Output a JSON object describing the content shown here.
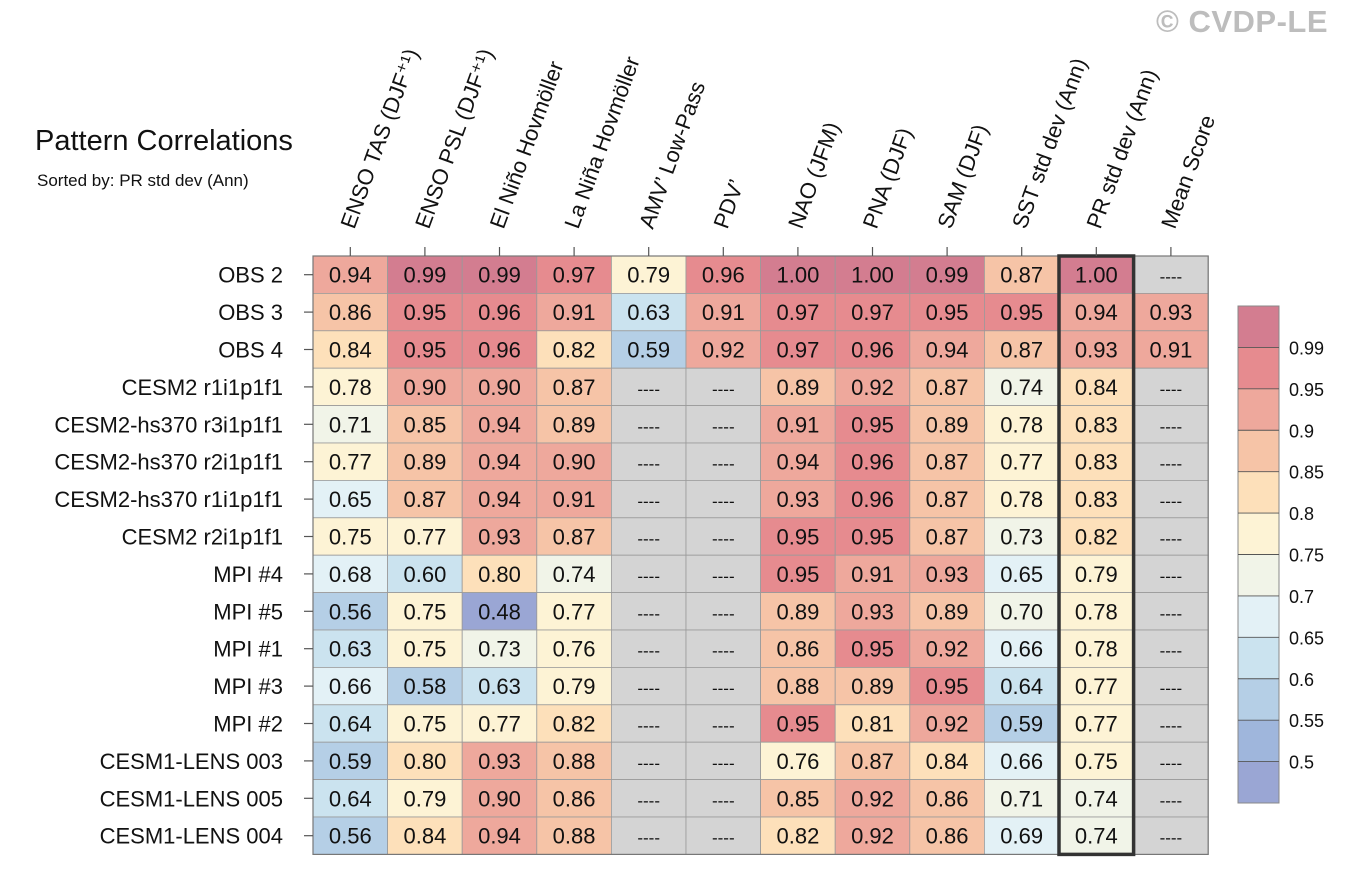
{
  "watermark": "© CVDP-LE",
  "chart_data": {
    "type": "heatmap",
    "title": "Pattern Correlations",
    "subtitle": "Sorted by: PR std dev (Ann)",
    "columns": [
      "ENSO TAS (DJF⁺¹)",
      "ENSO PSL (DJF⁺¹)",
      "El Niño Hovmöller",
      "La Niña Hovmöller",
      "AMV’ Low-Pass",
      "PDV’",
      "NAO (JFM)",
      "PNA (DJF)",
      "SAM (DJF)",
      "SST std dev (Ann)",
      "PR std dev (Ann)",
      "Mean Score"
    ],
    "rows": [
      "OBS 2",
      "OBS 3",
      "OBS 4",
      "CESM2 r1i1p1f1",
      "CESM2-hs370 r3i1p1f1",
      "CESM2-hs370 r2i1p1f1",
      "CESM2-hs370 r1i1p1f1",
      "CESM2 r2i1p1f1",
      "MPI #4",
      "MPI #5",
      "MPI #1",
      "MPI #3",
      "MPI #2",
      "CESM1-LENS 003",
      "CESM1-LENS 005",
      "CESM1-LENS 004"
    ],
    "values": [
      [
        0.94,
        0.99,
        0.99,
        0.97,
        0.79,
        0.96,
        1.0,
        1.0,
        0.99,
        0.87,
        1.0,
        null
      ],
      [
        0.86,
        0.95,
        0.96,
        0.91,
        0.63,
        0.91,
        0.97,
        0.97,
        0.95,
        0.95,
        0.94,
        0.93
      ],
      [
        0.84,
        0.95,
        0.96,
        0.82,
        0.59,
        0.92,
        0.97,
        0.96,
        0.94,
        0.87,
        0.93,
        0.91
      ],
      [
        0.78,
        0.9,
        0.9,
        0.87,
        null,
        null,
        0.89,
        0.92,
        0.87,
        0.74,
        0.84,
        null
      ],
      [
        0.71,
        0.85,
        0.94,
        0.89,
        null,
        null,
        0.91,
        0.95,
        0.89,
        0.78,
        0.83,
        null
      ],
      [
        0.77,
        0.89,
        0.94,
        0.9,
        null,
        null,
        0.94,
        0.96,
        0.87,
        0.77,
        0.83,
        null
      ],
      [
        0.65,
        0.87,
        0.94,
        0.91,
        null,
        null,
        0.93,
        0.96,
        0.87,
        0.78,
        0.83,
        null
      ],
      [
        0.75,
        0.77,
        0.93,
        0.87,
        null,
        null,
        0.95,
        0.95,
        0.87,
        0.73,
        0.82,
        null
      ],
      [
        0.68,
        0.6,
        0.8,
        0.74,
        null,
        null,
        0.95,
        0.91,
        0.93,
        0.65,
        0.79,
        null
      ],
      [
        0.56,
        0.75,
        0.48,
        0.77,
        null,
        null,
        0.89,
        0.93,
        0.89,
        0.7,
        0.78,
        null
      ],
      [
        0.63,
        0.75,
        0.73,
        0.76,
        null,
        null,
        0.86,
        0.95,
        0.92,
        0.66,
        0.78,
        null
      ],
      [
        0.66,
        0.58,
        0.63,
        0.79,
        null,
        null,
        0.88,
        0.89,
        0.95,
        0.64,
        0.77,
        null
      ],
      [
        0.64,
        0.75,
        0.77,
        0.82,
        null,
        null,
        0.95,
        0.81,
        0.92,
        0.59,
        0.77,
        null
      ],
      [
        0.59,
        0.8,
        0.93,
        0.88,
        null,
        null,
        0.76,
        0.87,
        0.84,
        0.66,
        0.75,
        null
      ],
      [
        0.64,
        0.79,
        0.9,
        0.86,
        null,
        null,
        0.85,
        0.92,
        0.86,
        0.71,
        0.74,
        null
      ],
      [
        0.56,
        0.84,
        0.94,
        0.88,
        null,
        null,
        0.82,
        0.92,
        0.86,
        0.69,
        0.74,
        null
      ]
    ],
    "missing_label": "----",
    "highlight_column": "PR std dev (Ann)",
    "colorbar": {
      "labels": [
        "0.99",
        "0.95",
        "0.9",
        "0.85",
        "0.8",
        "0.75",
        "0.7",
        "0.65",
        "0.6",
        "0.55",
        "0.5"
      ],
      "levels": [
        0.99,
        0.95,
        0.9,
        0.85,
        0.8,
        0.75,
        0.7,
        0.65,
        0.6,
        0.55,
        0.5
      ],
      "colors": [
        "#d37d90",
        "#e68b8f",
        "#eea89c",
        "#f6c4a7",
        "#fde0ba",
        "#fdf3d5",
        "#f1f4e8",
        "#e3f1f6",
        "#cbe3ef",
        "#b5cfe6",
        "#9fb6dc",
        "#9aa6d4"
      ]
    },
    "colors": {
      "missing": "#d4d4d4",
      "grid": "#9a9a9a",
      "highlight": "#333333"
    }
  }
}
